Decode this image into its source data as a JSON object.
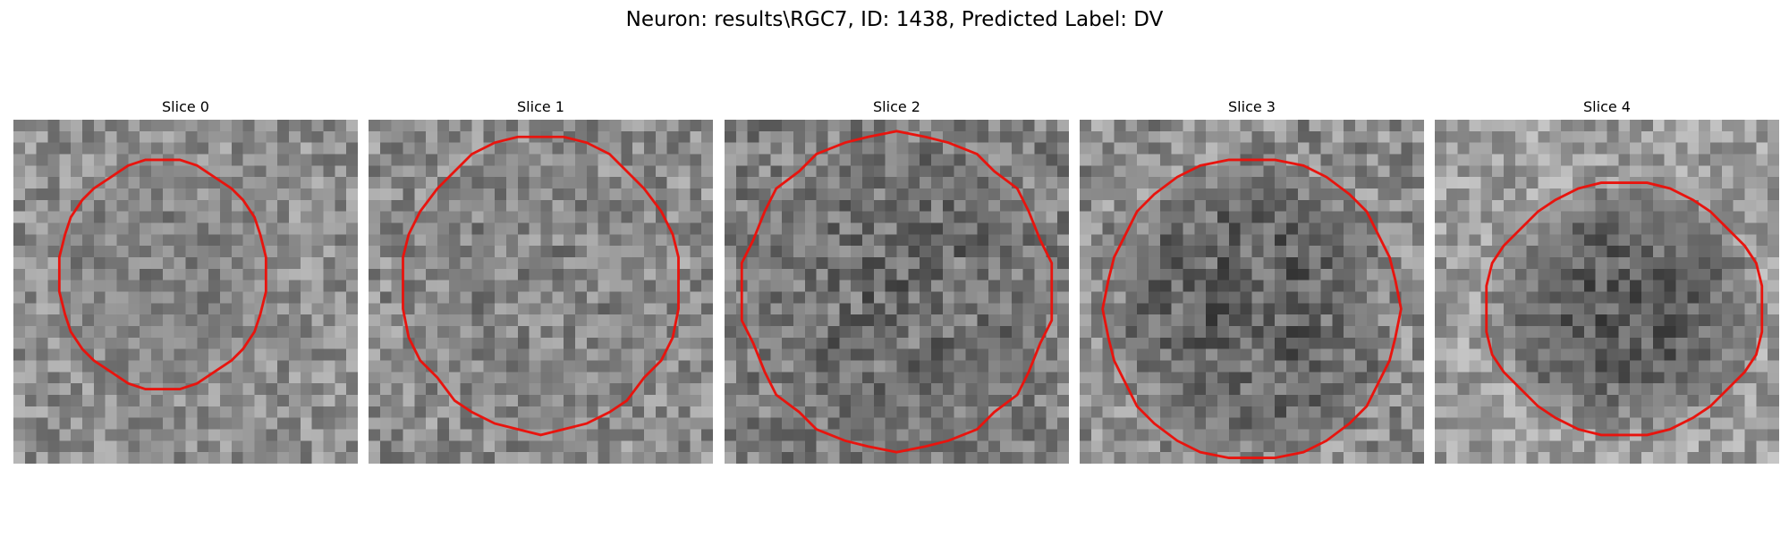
{
  "figure": {
    "title": "Neuron: results\\RGC7, ID: 1438, Predicted Label: DV",
    "contour_color": "#e8140e",
    "panels": [
      {
        "title": "Slice 0",
        "mean": 0.56,
        "spread": 0.16,
        "seed": 11,
        "center": [
          0.43,
          0.45
        ],
        "radius": [
          0.31,
          0.34
        ],
        "dark": [
          0.5,
          0.3,
          0.28
        ]
      },
      {
        "title": "Slice 1",
        "mean": 0.55,
        "spread": 0.17,
        "seed": 23,
        "center": [
          0.5,
          0.48
        ],
        "radius": [
          0.41,
          0.44
        ],
        "dark": [
          0.52,
          0.35,
          0.34
        ]
      },
      {
        "title": "Slice 2",
        "mean": 0.5,
        "spread": 0.17,
        "seed": 37,
        "center": [
          0.5,
          0.5
        ],
        "radius": [
          0.46,
          0.47
        ],
        "dark": [
          0.43,
          0.4,
          0.38
        ]
      },
      {
        "title": "Slice 3",
        "mean": 0.55,
        "spread": 0.18,
        "seed": 41,
        "center": [
          0.5,
          0.55
        ],
        "radius": [
          0.44,
          0.45
        ],
        "dark": [
          0.38,
          0.4,
          0.34
        ]
      },
      {
        "title": "Slice 4",
        "mean": 0.62,
        "spread": 0.16,
        "seed": 59,
        "center": [
          0.55,
          0.55
        ],
        "radius": [
          0.41,
          0.38
        ],
        "dark": [
          0.36,
          0.35,
          0.34
        ]
      }
    ]
  }
}
